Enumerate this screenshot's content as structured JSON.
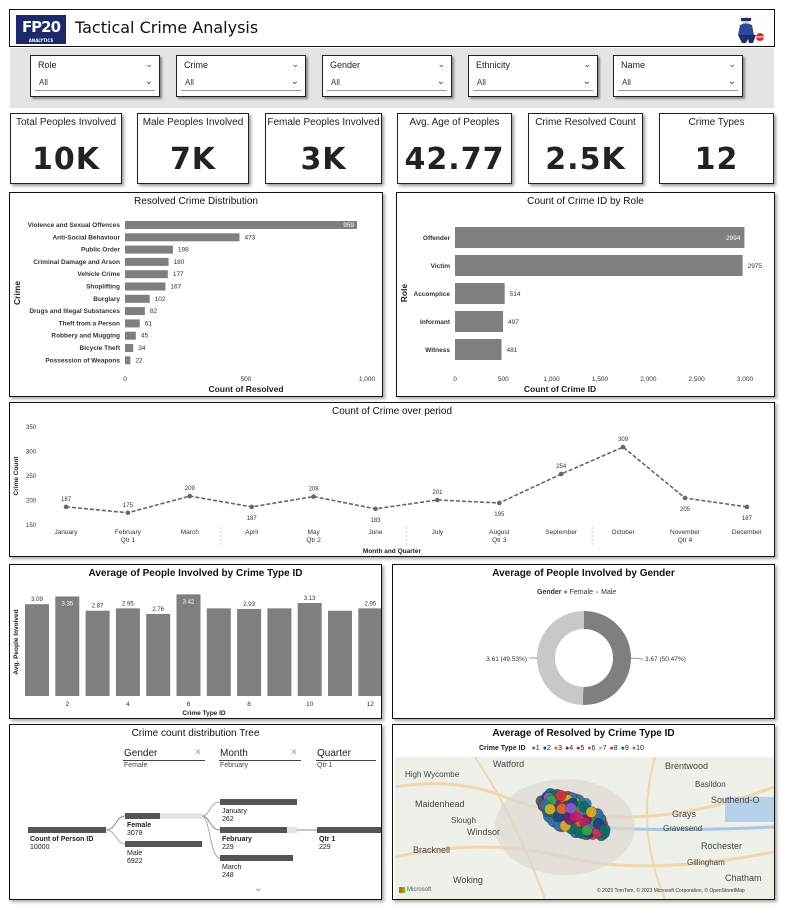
{
  "header": {
    "logo_text": "FP20",
    "logo_sub": "ANALYTICS",
    "title": "Tactical Crime Analysis"
  },
  "slicers": [
    {
      "label": "Role",
      "value": "All"
    },
    {
      "label": "Crime",
      "value": "All"
    },
    {
      "label": "Gender",
      "value": "All"
    },
    {
      "label": "Ethnicity",
      "value": "All"
    },
    {
      "label": "Name",
      "value": "All"
    }
  ],
  "kpis": [
    {
      "label": "Total Peoples Involved",
      "value": "10K"
    },
    {
      "label": "Male Peoples Involved",
      "value": "7K"
    },
    {
      "label": "Female Peoples Involved",
      "value": "3K"
    },
    {
      "label": "Avg. Age of Peoples",
      "value": "42.77"
    },
    {
      "label": "Crime Resolved Count",
      "value": "2.5K"
    },
    {
      "label": "Crime Types",
      "value": "12"
    }
  ],
  "chart_data": [
    {
      "type": "bar",
      "orientation": "horizontal",
      "title": "Resolved Crime Distribution",
      "xlabel": "Count of Resolved",
      "ylabel": "Crime",
      "xticks": [
        "0",
        "500",
        "1,000"
      ],
      "xlim": [
        0,
        1000
      ],
      "categories": [
        "Violence and Sexual Offences",
        "Anti-Social Behaviour",
        "Public Order",
        "Criminal Damage and Arson",
        "Vehicle Crime",
        "Shoplifting",
        "Burglary",
        "Drugs and Illegal Substances",
        "Theft from a Person",
        "Robbery and Mugging",
        "Bicycle Theft",
        "Possession of Weapons"
      ],
      "values": [
        959,
        473,
        198,
        180,
        177,
        167,
        102,
        82,
        61,
        45,
        34,
        22
      ]
    },
    {
      "type": "bar",
      "orientation": "horizontal",
      "title": "Count of Crime ID by Role",
      "xlabel": "Count of Crime ID",
      "ylabel": "Role",
      "xticks": [
        "0",
        "500",
        "1,000",
        "1,500",
        "2,000",
        "2,500",
        "3,000"
      ],
      "xlim": [
        0,
        3000
      ],
      "categories": [
        "Offender",
        "Victim",
        "Accomplice",
        "Informant",
        "Witness"
      ],
      "values": [
        2994,
        2975,
        514,
        497,
        481
      ]
    },
    {
      "type": "line",
      "title": "Count of Crime over period",
      "xlabel": "Month and Quarter",
      "ylabel": "Crime Count",
      "yticks": [
        "150",
        "200",
        "250",
        "300",
        "350"
      ],
      "ylim": [
        150,
        350
      ],
      "categories": [
        "January",
        "February",
        "March",
        "April",
        "May",
        "June",
        "July",
        "August",
        "September",
        "October",
        "November",
        "December"
      ],
      "quarters": [
        "Qtr 1",
        "Qtr 2",
        "Qtr 3",
        "Qtr 4"
      ],
      "values": [
        187,
        175,
        209,
        187,
        208,
        183,
        201,
        195,
        254,
        309,
        205,
        187
      ]
    },
    {
      "type": "bar",
      "title": "Average of People Involved by Crime Type ID",
      "xlabel": "Crime Type ID",
      "ylabel": "Avg. People Involved",
      "categories": [
        "1",
        "2",
        "3",
        "4",
        "5",
        "6",
        "7",
        "8",
        "9",
        "10",
        "11",
        "12"
      ],
      "xticks": [
        "2",
        "4",
        "6",
        "8",
        "10",
        "12"
      ],
      "values": [
        3.09,
        3.35,
        2.87,
        2.95,
        2.76,
        3.42,
        2.95,
        2.93,
        2.95,
        3.13,
        2.87,
        2.95
      ],
      "labels": [
        "3.09",
        "3.35",
        "2.87",
        "2.95",
        "2.76",
        "3.42",
        "",
        "2.93",
        "",
        "3.13",
        "",
        "2.95"
      ]
    },
    {
      "type": "pie",
      "donut": true,
      "title": "Average of People Involved by Gender",
      "legend_title": "Gender",
      "categories": [
        "Female",
        "Male"
      ],
      "values": [
        3.67,
        3.61
      ],
      "labels": [
        "3.67 (50.47%)",
        "3.61 (49.53%)"
      ],
      "colors": [
        "#7f7f7f",
        "#c8c8c8"
      ]
    }
  ],
  "tree": {
    "title": "Crime count distribution Tree",
    "levels": [
      {
        "name": "Gender",
        "filter": "Female"
      },
      {
        "name": "Month",
        "filter": "February"
      },
      {
        "name": "Quarter",
        "filter": "Qtr 1"
      }
    ],
    "root": {
      "label": "Count of Person ID",
      "value": "10000"
    },
    "gender_nodes": [
      {
        "label": "Female",
        "value": "3078",
        "fill": 0.45
      },
      {
        "label": "Male",
        "value": "6922",
        "fill": 1.0
      }
    ],
    "month_nodes": [
      {
        "label": "January",
        "value": "262",
        "fill": 1.0
      },
      {
        "label": "February",
        "value": "229",
        "fill": 0.87
      },
      {
        "label": "March",
        "value": "248",
        "fill": 0.95
      }
    ],
    "quarter_node": {
      "label": "Qtr 1",
      "value": "229"
    }
  },
  "map": {
    "title": "Average of Resolved by Crime Type ID",
    "legend_title": "Crime Type ID",
    "legend": [
      {
        "label": "1",
        "color": "#1f77b4"
      },
      {
        "label": "2",
        "color": "#1a3e8c"
      },
      {
        "label": "3",
        "color": "#e06b1f"
      },
      {
        "label": "4",
        "color": "#6a1f7a"
      },
      {
        "label": "5",
        "color": "#c2186e"
      },
      {
        "label": "6",
        "color": "#8a5bd6"
      },
      {
        "label": "7",
        "color": "#e0b21a"
      },
      {
        "label": "8",
        "color": "#d62f3a"
      },
      {
        "label": "9",
        "color": "#0c6b6b"
      },
      {
        "label": "10",
        "color": "#2bab3c"
      }
    ],
    "places": [
      "High Wycombe",
      "Watford",
      "Brentwood",
      "Basildon",
      "Maidenhead",
      "Southend-O",
      "Slough",
      "Grays",
      "Windsor",
      "Gravesend",
      "Bracknell",
      "Rochester",
      "Gillingham",
      "Woking",
      "Chatham"
    ],
    "attribution": "© 2023 TomTom, © 2023 Microsoft Corporation, © OpenStreetMap",
    "brand": "Microsoft"
  }
}
